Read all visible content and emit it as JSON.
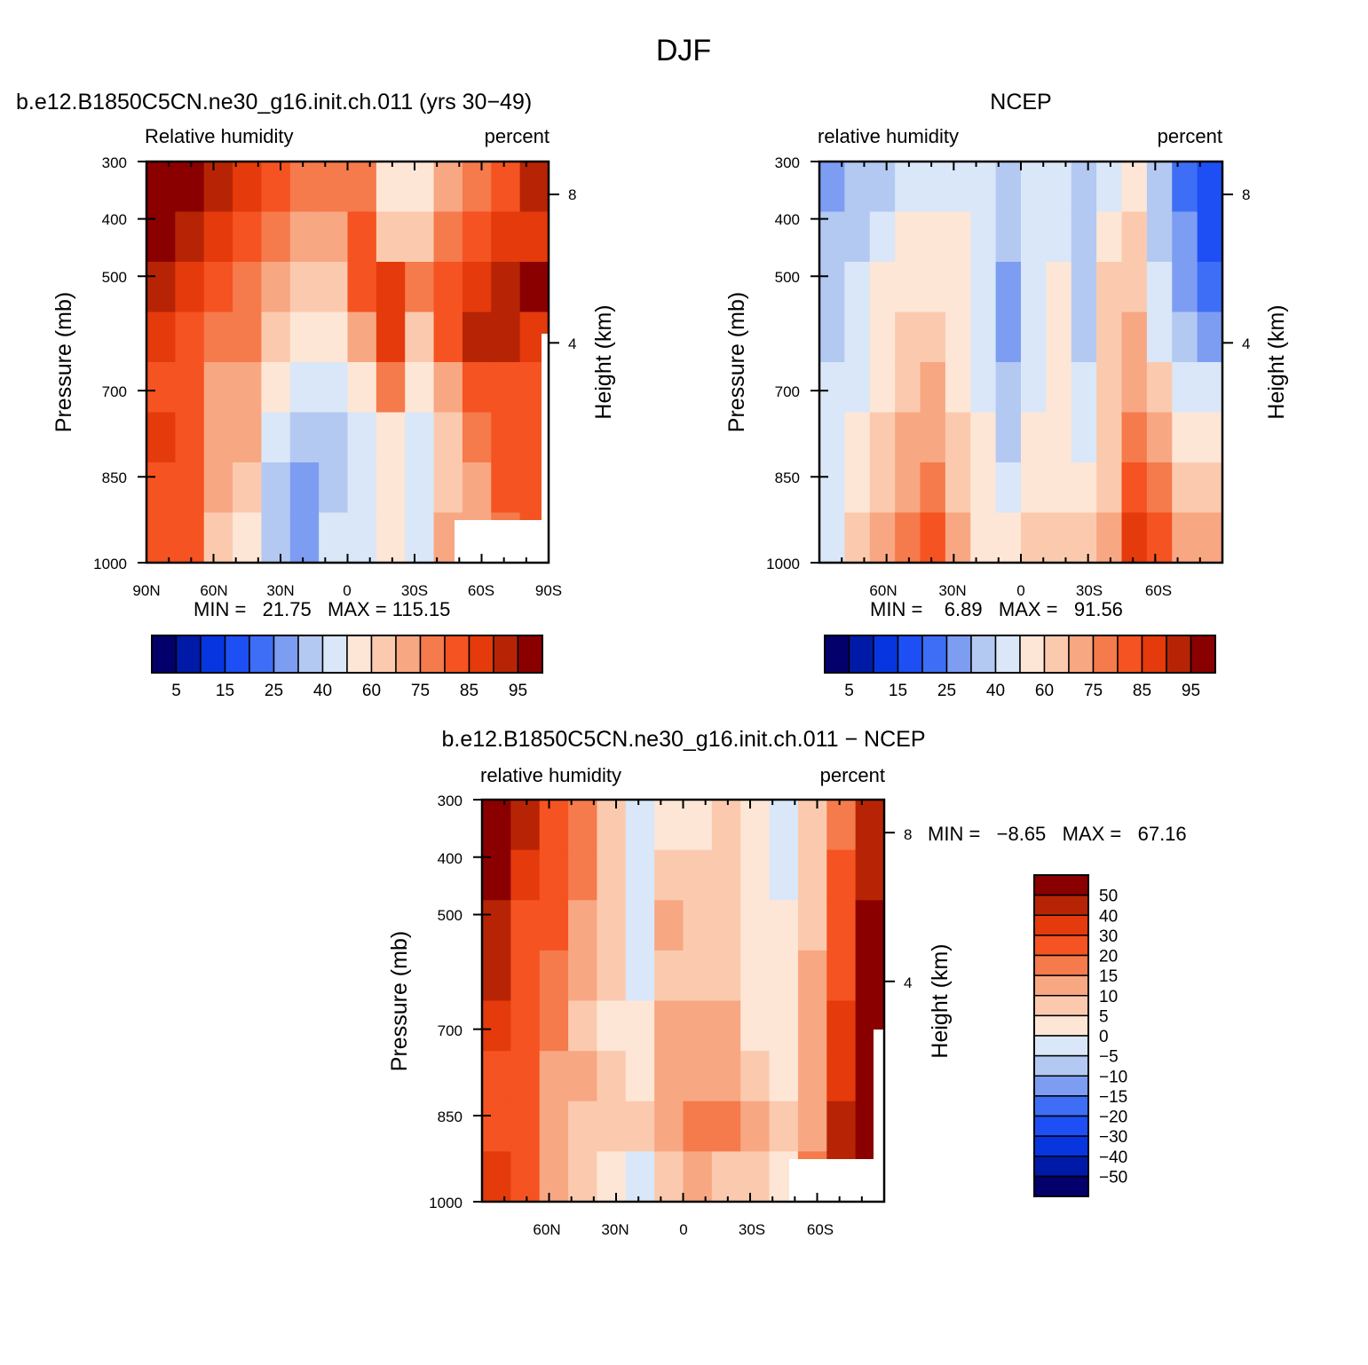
{
  "title": "DJF",
  "scales": {
    "abs": {
      "colors": [
        "#03006b",
        "#001aa8",
        "#0736e0",
        "#1d4ff5",
        "#3e6ef5",
        "#7d9df2",
        "#b3c9f2",
        "#d9e7f8",
        "#fde6d6",
        "#fbcaae",
        "#f8a783",
        "#f57a4c",
        "#f55321",
        "#e43a0c",
        "#b72405",
        "#8a0000"
      ],
      "labels": [
        "5",
        "15",
        "25",
        "40",
        "60",
        "75",
        "85",
        "95"
      ]
    },
    "diff": {
      "colors": [
        "#03006b",
        "#001aa8",
        "#0736e0",
        "#1d4ff5",
        "#3e6ef5",
        "#7d9df2",
        "#b3c9f2",
        "#d9e7f8",
        "#fde6d6",
        "#fbcaae",
        "#f8a783",
        "#f57a4c",
        "#f55321",
        "#e43a0c",
        "#b72405",
        "#8a0000"
      ],
      "labels": [
        "50",
        "40",
        "30",
        "20",
        "15",
        "10",
        "5",
        "0",
        "−5",
        "−10",
        "−15",
        "−20",
        "−30",
        "−40",
        "−50"
      ]
    }
  },
  "chart_data": [
    {
      "type": "heatmap",
      "title": "b.e12.B1850C5CN.ne30_g16.init.ch.011 (yrs 30−49)",
      "left_label": "Relative humidity",
      "right_label": "percent",
      "ylabel": "Pressure (mb)",
      "ylabel_right": "Height (km)",
      "yticks": [
        "300",
        "400",
        "500",
        "700",
        "850",
        "1000"
      ],
      "yticks_right": [
        "8",
        "4"
      ],
      "xticks": [
        "90N",
        "60N",
        "30N",
        "0",
        "30S",
        "60S",
        "90S"
      ],
      "stats": "MIN =   21.75   MAX = 115.15",
      "scale": "abs",
      "zone_colors": [
        [
          15,
          15,
          14,
          13,
          12,
          13,
          12,
          12
        ],
        [
          15,
          14,
          13,
          12,
          12,
          12,
          12,
          12
        ],
        [
          14,
          13,
          12,
          11,
          10,
          10,
          10,
          9
        ],
        [
          13,
          12,
          11,
          11,
          10,
          10,
          9,
          8
        ],
        [
          12,
          11,
          10,
          9,
          8,
          7,
          6,
          6
        ],
        [
          11,
          10,
          9,
          8,
          7,
          6,
          5,
          5
        ],
        [
          11,
          10,
          9,
          8,
          7,
          6,
          6,
          7
        ],
        [
          11,
          12,
          12,
          10,
          8,
          7,
          7,
          7
        ],
        [
          8,
          9,
          13,
          13,
          11,
          8,
          8,
          8
        ],
        [
          8,
          9,
          11,
          9,
          8,
          7,
          7,
          7
        ],
        [
          10,
          11,
          12,
          12,
          10,
          9,
          9,
          10
        ],
        [
          11,
          12,
          13,
          14,
          12,
          11,
          10,
          10
        ],
        [
          12,
          13,
          14,
          14,
          12,
          12,
          12,
          11
        ],
        [
          14,
          13,
          15,
          13,
          12,
          12,
          12,
          12
        ]
      ]
    },
    {
      "type": "heatmap",
      "title": "NCEP",
      "left_label": "relative humidity",
      "right_label": "percent",
      "ylabel": "Pressure (mb)",
      "ylabel_right": "Height (km)",
      "yticks": [
        "300",
        "400",
        "500",
        "700",
        "850",
        "1000"
      ],
      "yticks_right": [
        "8",
        "4"
      ],
      "xticks": [
        "60N",
        "30N",
        "0",
        "30S",
        "60S"
      ],
      "stats": "MIN =    6.89   MAX =   91.56",
      "scale": "abs",
      "zone_colors": [
        [
          5,
          6,
          6,
          6,
          7,
          7,
          7,
          7
        ],
        [
          6,
          6,
          7,
          7,
          7,
          8,
          8,
          9
        ],
        [
          6,
          7,
          8,
          8,
          8,
          9,
          9,
          10
        ],
        [
          7,
          8,
          8,
          9,
          9,
          10,
          10,
          11
        ],
        [
          7,
          8,
          8,
          9,
          10,
          10,
          11,
          12
        ],
        [
          7,
          8,
          8,
          8,
          8,
          9,
          9,
          10
        ],
        [
          7,
          7,
          7,
          7,
          7,
          8,
          8,
          8
        ],
        [
          6,
          6,
          5,
          5,
          6,
          6,
          7,
          8
        ],
        [
          7,
          7,
          7,
          7,
          7,
          8,
          8,
          9
        ],
        [
          7,
          7,
          8,
          8,
          8,
          8,
          8,
          9
        ],
        [
          6,
          6,
          6,
          6,
          7,
          7,
          8,
          9
        ],
        [
          7,
          8,
          9,
          9,
          9,
          9,
          9,
          10
        ],
        [
          8,
          9,
          9,
          10,
          10,
          11,
          12,
          13
        ],
        [
          6,
          6,
          7,
          7,
          9,
          10,
          11,
          12
        ],
        [
          4,
          5,
          5,
          6,
          7,
          8,
          9,
          10
        ],
        [
          3,
          3,
          4,
          5,
          7,
          8,
          9,
          10
        ]
      ]
    },
    {
      "type": "heatmap",
      "title": "b.e12.B1850C5CN.ne30_g16.init.ch.011 − NCEP",
      "left_label": "relative humidity",
      "right_label": "percent",
      "ylabel": "Pressure (mb)",
      "ylabel_right": "Height (km)",
      "yticks": [
        "300",
        "400",
        "500",
        "700",
        "850",
        "1000"
      ],
      "yticks_right": [
        "8",
        "4"
      ],
      "xticks": [
        "60N",
        "30N",
        "0",
        "30S",
        "60S"
      ],
      "stats": "MIN =   −8.65   MAX =   67.16",
      "scale": "diff",
      "zone_colors": [
        [
          15,
          15,
          14,
          14,
          13,
          12,
          12,
          13
        ],
        [
          14,
          13,
          12,
          12,
          12,
          12,
          12,
          12
        ],
        [
          12,
          12,
          12,
          11,
          11,
          10,
          10,
          10
        ],
        [
          11,
          11,
          10,
          10,
          9,
          10,
          9,
          9
        ],
        [
          9,
          9,
          9,
          9,
          8,
          9,
          9,
          8
        ],
        [
          7,
          7,
          7,
          7,
          8,
          8,
          9,
          7
        ],
        [
          8,
          9,
          10,
          9,
          10,
          10,
          10,
          9
        ],
        [
          8,
          9,
          9,
          9,
          10,
          10,
          11,
          10
        ],
        [
          9,
          9,
          9,
          9,
          10,
          10,
          11,
          9
        ],
        [
          8,
          8,
          8,
          8,
          8,
          9,
          10,
          9
        ],
        [
          7,
          7,
          8,
          8,
          8,
          8,
          9,
          8
        ],
        [
          9,
          9,
          9,
          10,
          10,
          10,
          10,
          11
        ],
        [
          11,
          12,
          12,
          12,
          13,
          13,
          14,
          14
        ],
        [
          14,
          14,
          15,
          15,
          15,
          15,
          15,
          15
        ]
      ]
    }
  ]
}
